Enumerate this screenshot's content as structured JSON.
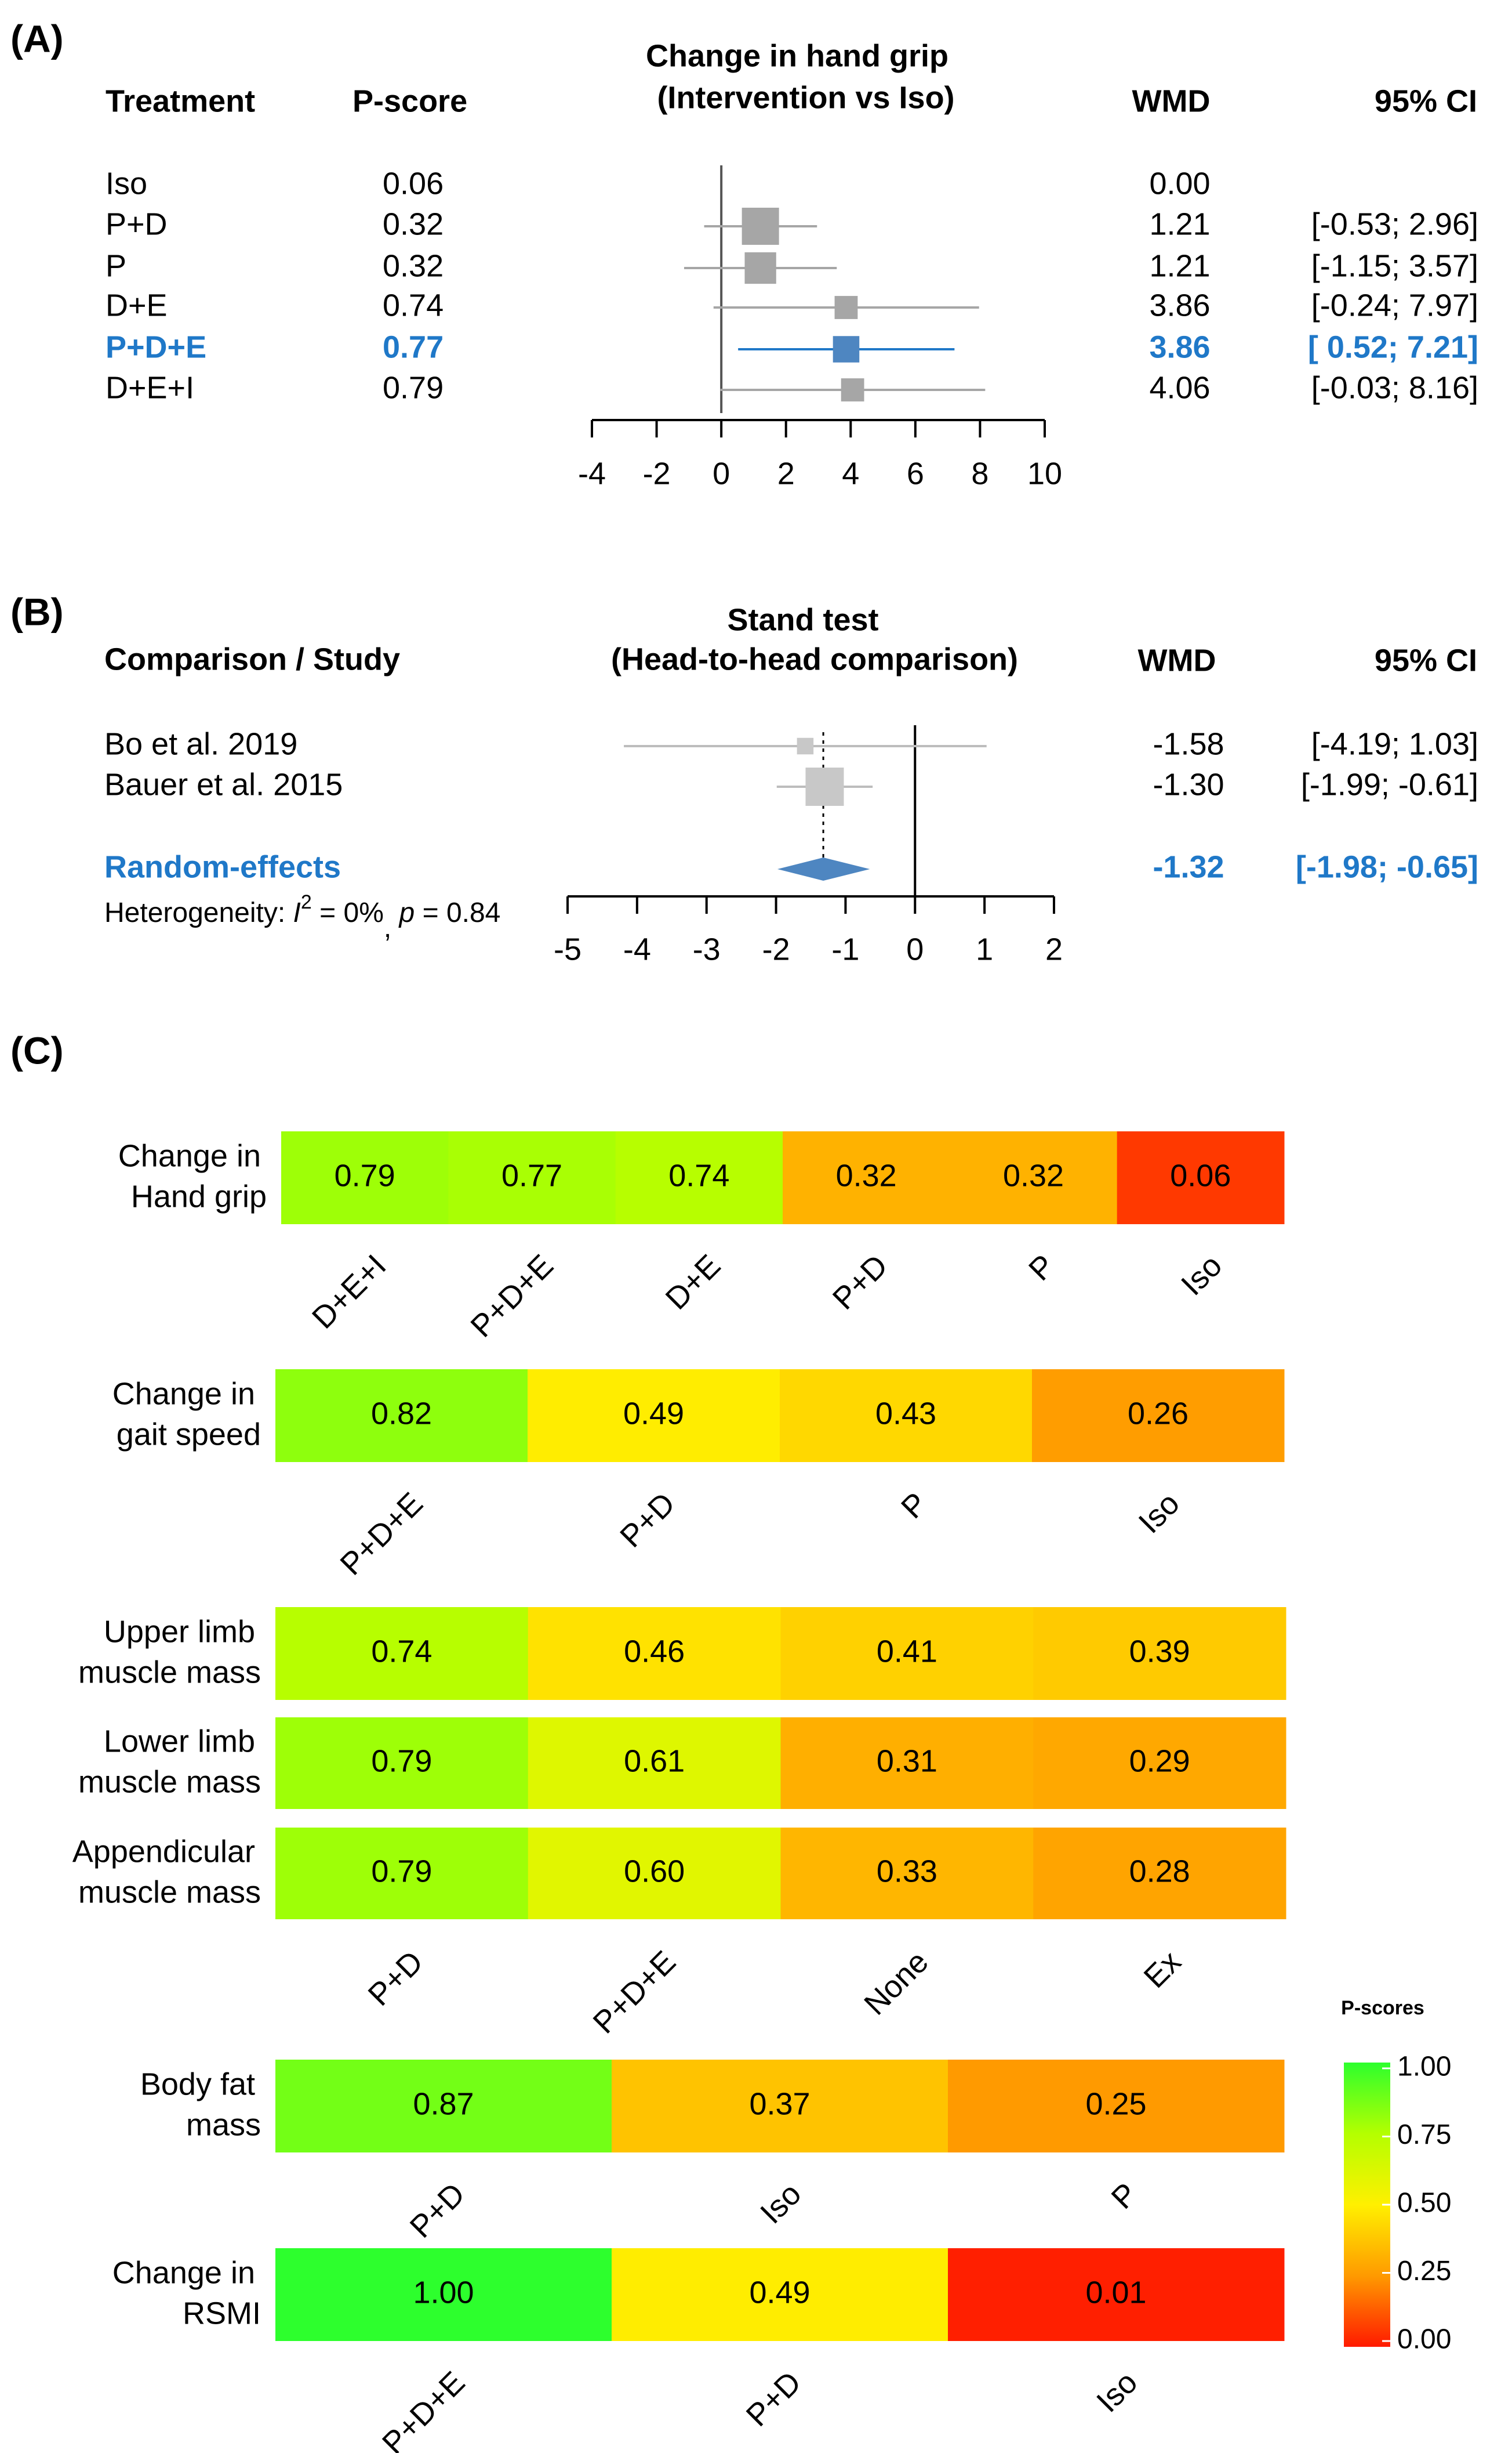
{
  "colors": {
    "highlight": "#1f78c8",
    "grey_marker": "#a6a6a6",
    "grey_line": "#bdbdbd",
    "pooled": "#4e86c1",
    "axis": "#000000"
  },
  "chart_data": [
    {
      "panel": "(A)",
      "type": "forest",
      "title": "Change in hand grip",
      "subtitle": "(Intervention vs Iso)",
      "columns": {
        "label": "Treatment",
        "score": "P-score",
        "wmd": "WMD",
        "ci": "95% CI"
      },
      "xlim": [
        -4,
        10
      ],
      "ticks": [
        "-4",
        "-2",
        "0",
        "2",
        "4",
        "6",
        "8",
        "10"
      ],
      "rows": [
        {
          "label": "Iso",
          "pscore": "0.06",
          "wmd": 0.0,
          "wmd_text": "0.00",
          "lo": null,
          "hi": null,
          "ci_text": "",
          "weight": 0,
          "highlight": false
        },
        {
          "label": "P+D",
          "pscore": "0.32",
          "wmd": 1.21,
          "wmd_text": "1.21",
          "lo": -0.53,
          "hi": 2.96,
          "ci_text": "[-0.53; 2.96]",
          "weight": 1.0,
          "highlight": false
        },
        {
          "label": "P",
          "pscore": "0.32",
          "wmd": 1.21,
          "wmd_text": "1.21",
          "lo": -1.15,
          "hi": 3.57,
          "ci_text": "[-1.15; 3.57]",
          "weight": 0.78,
          "highlight": false
        },
        {
          "label": "D+E",
          "pscore": "0.74",
          "wmd": 3.86,
          "wmd_text": "3.86",
          "lo": -0.24,
          "hi": 7.97,
          "ci_text": "[-0.24; 7.97]",
          "weight": 0.45,
          "highlight": false
        },
        {
          "label": "P+D+E",
          "pscore": "0.77",
          "wmd": 3.86,
          "wmd_text": "3.86",
          "lo": 0.52,
          "hi": 7.21,
          "ci_text": "[ 0.52; 7.21]",
          "weight": 0.58,
          "highlight": true
        },
        {
          "label": "D+E+I",
          "pscore": "0.79",
          "wmd": 4.06,
          "wmd_text": "4.06",
          "lo": -0.03,
          "hi": 8.16,
          "ci_text": "[-0.03; 8.16]",
          "weight": 0.45,
          "highlight": false
        }
      ]
    },
    {
      "panel": "(B)",
      "type": "forest",
      "title": "Stand test",
      "subtitle": "(Head-to-head comparison)",
      "columns": {
        "label": "Comparison / Study",
        "wmd": "WMD",
        "ci": "95% CI"
      },
      "xlim": [
        -5,
        2
      ],
      "ticks": [
        "-5",
        "-4",
        "-3",
        "-2",
        "-1",
        "0",
        "1",
        "2"
      ],
      "studies": [
        {
          "label": "Bo et al. 2019",
          "wmd": -1.58,
          "wmd_text": "-1.58",
          "lo": -4.19,
          "hi": 1.03,
          "ci_text": "[-4.19;  1.03]",
          "weight": 0.25
        },
        {
          "label": "Bauer et al. 2015",
          "wmd": -1.3,
          "wmd_text": "-1.30",
          "lo": -1.99,
          "hi": -0.61,
          "ci_text": "[-1.99; -0.61]",
          "weight": 1.0
        }
      ],
      "pooled": {
        "label": "Random-effects",
        "wmd": -1.32,
        "wmd_text": "-1.32",
        "lo": -1.98,
        "hi": -0.65,
        "ci_text": "[-1.98; -0.65]"
      },
      "heterogeneity": {
        "prefix": "Heterogeneity: ",
        "i_symbol": "I",
        "sup": "2",
        "mid": " = 0%",
        "comma": ", ",
        "p_symbol": "p",
        "p_value": " = 0.84"
      }
    },
    {
      "panel": "(C)",
      "type": "heatmap",
      "blocks": [
        {
          "rows": [
            {
              "label": [
                "Change in",
                "Hand grip"
              ],
              "values": [
                0.79,
                0.77,
                0.74,
                0.32,
                0.32,
                0.06
              ],
              "texts": [
                "0.79",
                "0.77",
                "0.74",
                "0.32",
                "0.32",
                "0.06"
              ]
            }
          ],
          "categories": [
            "D+E+I",
            "P+D+E",
            "D+E",
            "P+D",
            "P",
            "Iso"
          ]
        },
        {
          "rows": [
            {
              "label": [
                "Change in",
                "gait speed"
              ],
              "values": [
                0.82,
                0.49,
                0.43,
                0.26
              ],
              "texts": [
                "0.82",
                "0.49",
                "0.43",
                "0.26"
              ]
            }
          ],
          "categories": [
            "P+D+E",
            "P+D",
            "P",
            "Iso"
          ]
        },
        {
          "rows": [
            {
              "label": [
                "Upper limb",
                "muscle mass"
              ],
              "values": [
                0.74,
                0.46,
                0.41,
                0.39
              ],
              "texts": [
                "0.74",
                "0.46",
                "0.41",
                "0.39"
              ]
            },
            {
              "label": [
                "Lower limb",
                "muscle mass"
              ],
              "values": [
                0.79,
                0.61,
                0.31,
                0.29
              ],
              "texts": [
                "0.79",
                "0.61",
                "0.31",
                "0.29"
              ]
            },
            {
              "label": [
                "Appendicular",
                "muscle mass"
              ],
              "values": [
                0.79,
                0.6,
                0.33,
                0.28
              ],
              "texts": [
                "0.79",
                "0.60",
                "0.33",
                "0.28"
              ]
            }
          ],
          "categories": [
            "P+D",
            "P+D+E",
            "None",
            "Ex"
          ]
        },
        {
          "rows": [
            {
              "label": [
                "Body fat",
                "mass"
              ],
              "values": [
                0.87,
                0.37,
                0.25
              ],
              "texts": [
                "0.87",
                "0.37",
                "0.25"
              ]
            }
          ],
          "categories": [
            "P+D",
            "Iso",
            "P"
          ]
        },
        {
          "rows": [
            {
              "label": [
                "Change in",
                "RSMI"
              ],
              "values": [
                1.0,
                0.49,
                0.01
              ],
              "texts": [
                "1.00",
                "0.49",
                "0.01"
              ]
            }
          ],
          "categories": [
            "P+D+E",
            "P+D",
            "Iso"
          ]
        }
      ],
      "legend": {
        "title": "P-scores",
        "ticks": [
          "1.00",
          "0.75",
          "0.50",
          "0.25",
          "0.00"
        ],
        "range": [
          0,
          1
        ]
      }
    }
  ]
}
